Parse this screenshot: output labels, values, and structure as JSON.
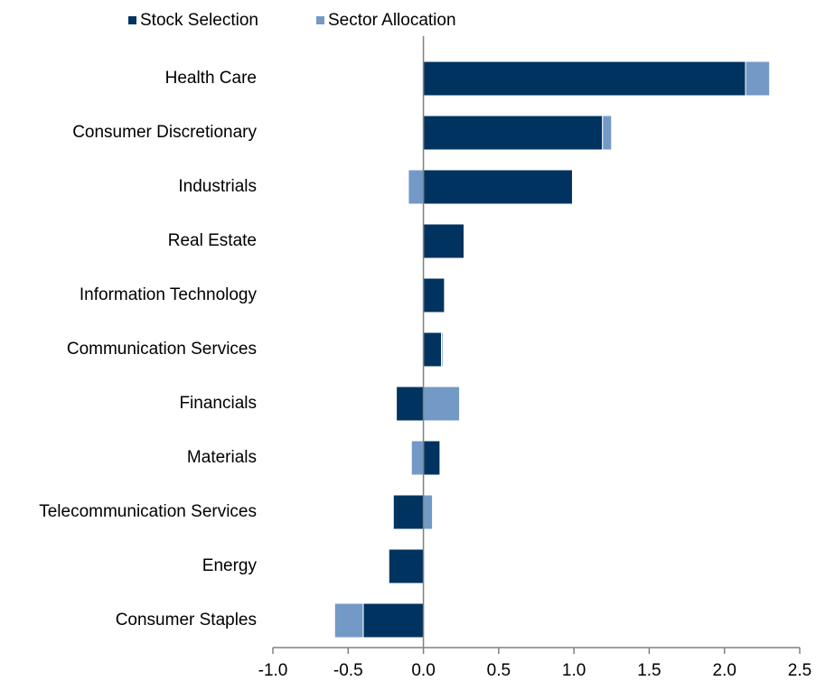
{
  "chart_data": {
    "type": "stacked_barh",
    "categories": [
      "Health Care",
      "Consumer Discretionary",
      "Industrials",
      "Real Estate",
      "Information Technology",
      "Communication Services",
      "Financials",
      "Materials",
      "Telecommunication Services",
      "Energy",
      "Consumer Staples"
    ],
    "series": [
      {
        "name": "Stock Selection",
        "color": "#00335f",
        "values": [
          2.14,
          1.19,
          0.99,
          0.27,
          0.14,
          0.12,
          -0.18,
          0.11,
          -0.2,
          -0.23,
          -0.4
        ]
      },
      {
        "name": "Sector Allocation",
        "color": "#7399c6",
        "values": [
          0.16,
          0.06,
          -0.1,
          0,
          0,
          0.01,
          0.24,
          -0.08,
          0.06,
          0,
          -0.19
        ]
      }
    ],
    "xlim": [
      -1.0,
      2.5
    ],
    "xticks": [
      {
        "value": -1.0,
        "label": "-1.0"
      },
      {
        "value": -0.5,
        "label": "-0.5"
      },
      {
        "value": 0,
        "label": "0.0"
      },
      {
        "value": 0.5,
        "label": "0.5"
      },
      {
        "value": 1.0,
        "label": "1.0"
      },
      {
        "value": 1.5,
        "label": "1.5"
      },
      {
        "value": 2.0,
        "label": "2.0"
      },
      {
        "value": 2.5,
        "label": "2.5"
      }
    ],
    "legend": "top"
  }
}
